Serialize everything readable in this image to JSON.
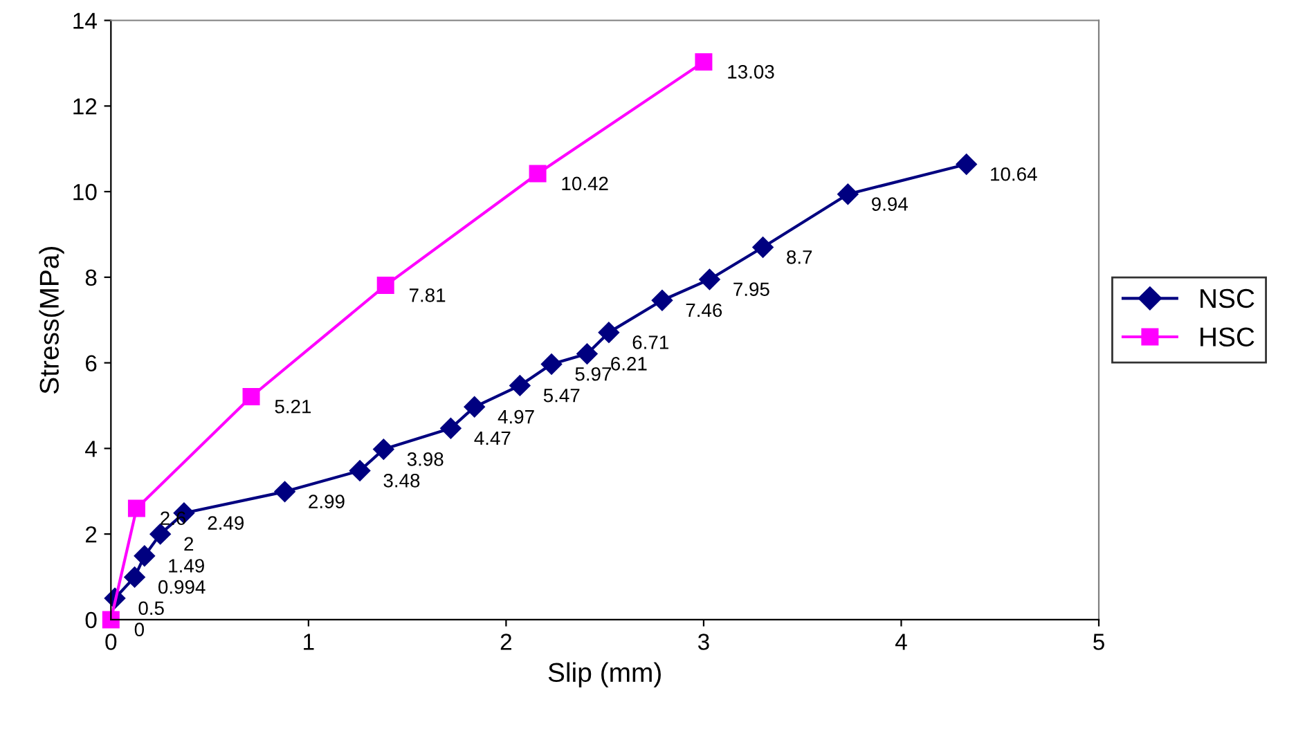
{
  "chart_data": {
    "type": "line",
    "xlabel": "Slip (mm)",
    "ylabel": "Stress(MPa)",
    "xlim": [
      0,
      5
    ],
    "ylim": [
      0,
      14
    ],
    "xticks": [
      0,
      1,
      2,
      3,
      4,
      5
    ],
    "yticks": [
      0,
      2,
      4,
      6,
      8,
      10,
      12,
      14
    ],
    "grid": false,
    "legend": "right",
    "data_labels": true,
    "series": [
      {
        "name": "NSC",
        "color": "#000080",
        "marker": "diamond",
        "x": [
          0.02,
          0.12,
          0.17,
          0.25,
          0.37,
          0.88,
          1.26,
          1.38,
          1.72,
          1.84,
          2.07,
          2.23,
          2.41,
          2.52,
          2.79,
          3.03,
          3.3,
          3.73,
          4.33
        ],
        "values": [
          0.5,
          0.994,
          1.49,
          2,
          2.49,
          2.99,
          3.48,
          3.98,
          4.47,
          4.97,
          5.47,
          5.97,
          6.21,
          6.71,
          7.46,
          7.95,
          8.7,
          9.94,
          10.64
        ]
      },
      {
        "name": "HSC",
        "color": "#ff00ff",
        "marker": "square",
        "x": [
          0,
          0.13,
          0.71,
          1.39,
          2.16,
          3.0
        ],
        "values": [
          0,
          2.6,
          5.21,
          7.81,
          10.42,
          13.03
        ]
      }
    ]
  }
}
